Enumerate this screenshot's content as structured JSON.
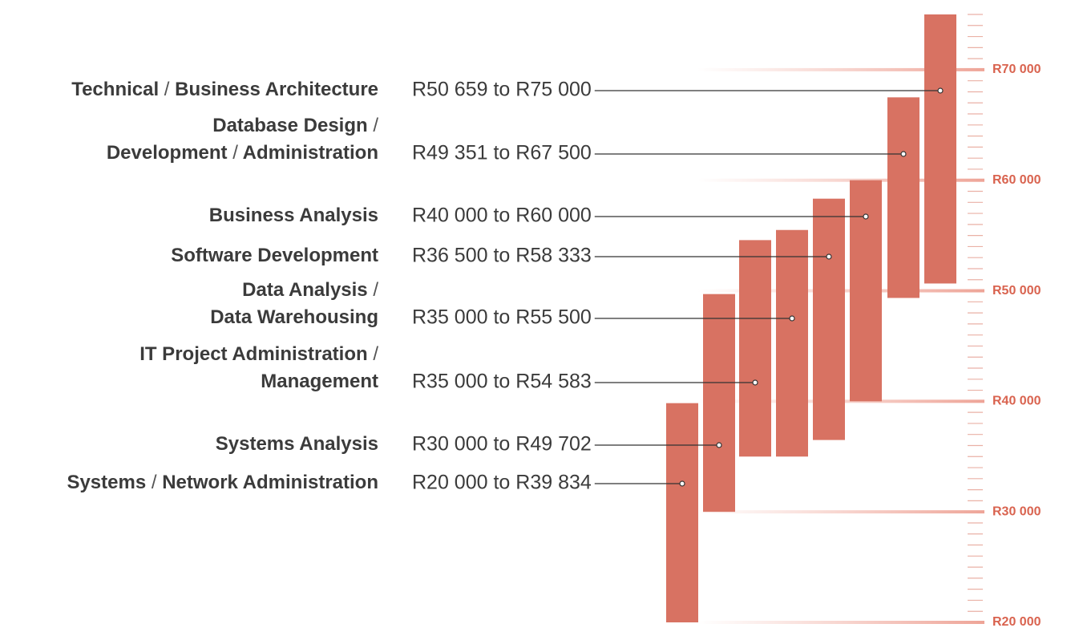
{
  "chart_data": {
    "type": "range_bar",
    "categories": [
      [
        "Technical / Business Architecture"
      ],
      [
        "Database Design /",
        "Development / Administration"
      ],
      [
        "Business Analysis"
      ],
      [
        "Software Development"
      ],
      [
        "Data Analysis /",
        "Data Warehousing"
      ],
      [
        "IT Project Administration /",
        "Management"
      ],
      [
        "Systems Analysis"
      ],
      [
        "Systems / Network Administration"
      ]
    ],
    "low": [
      50659,
      49351,
      40000,
      36500,
      35000,
      35000,
      30000,
      20000
    ],
    "high": [
      75000,
      67500,
      60000,
      58333,
      55500,
      54583,
      49702,
      39834
    ],
    "range_labels": [
      "R50 659 to R75 000",
      "R49 351 to R67 500",
      "R40 000 to R60 000",
      "R36 500 to R58 333",
      "R35 000 to R55 500",
      "R35 000 to R54 583",
      "R30 000 to R49 702",
      "R20 000 to R39 834"
    ],
    "color": "#d87262",
    "ylim": [
      20000,
      75000
    ],
    "yticks": [
      {
        "value": 20000,
        "label": "R20 000"
      },
      {
        "value": 30000,
        "label": "R30 000"
      },
      {
        "value": 40000,
        "label": "R40 000"
      },
      {
        "value": 50000,
        "label": "R50 000"
      },
      {
        "value": 60000,
        "label": "R60 000"
      },
      {
        "value": 70000,
        "label": "R70 000"
      }
    ],
    "yticks_minor": [
      21000,
      22000,
      23000,
      24000,
      25000,
      26000,
      27000,
      28000,
      29000,
      31000,
      32000,
      33000,
      34000,
      35000,
      36000,
      37000,
      38000,
      39000,
      41000,
      42000,
      43000,
      44000,
      45000,
      46000,
      47000,
      48000,
      49000,
      51000,
      52000,
      53000,
      54000,
      55000,
      56000,
      57000,
      58000,
      59000,
      61000,
      62000,
      63000,
      64000,
      65000,
      66000,
      67000,
      68000,
      69000,
      71000,
      72000,
      73000,
      74000,
      75000
    ]
  }
}
